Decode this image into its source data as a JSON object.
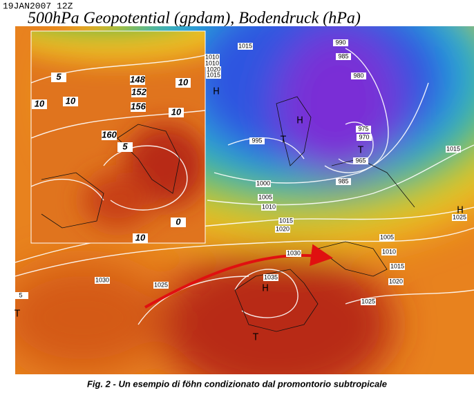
{
  "header": {
    "timestamp": "19JAN2007 12Z",
    "title": "500hPa Geopotential (gpdam), Bodendruck (hPa)"
  },
  "map": {
    "pressure_labels": [
      "1015",
      "990",
      "985",
      "980",
      "1010",
      "1010",
      "1020",
      "1015",
      "995",
      "975",
      "970",
      "965",
      "985",
      "1000",
      "1005",
      "1010",
      "1015",
      "1020",
      "1015",
      "1025",
      "1030",
      "1005",
      "1010",
      "1015",
      "1020",
      "1030",
      "1025",
      "1035",
      "1025",
      "5"
    ],
    "centers": [
      "H",
      "H",
      "T",
      "T",
      "H",
      "H",
      "T",
      "T"
    ],
    "inset_labels": [
      "148",
      "152",
      "156",
      "160",
      "5",
      "10",
      "10",
      "10",
      "5",
      "10",
      "0",
      "10"
    ]
  },
  "caption": "Fig. 2 - Un esempio di föhn condizionato dal promontorio subtropicale"
}
